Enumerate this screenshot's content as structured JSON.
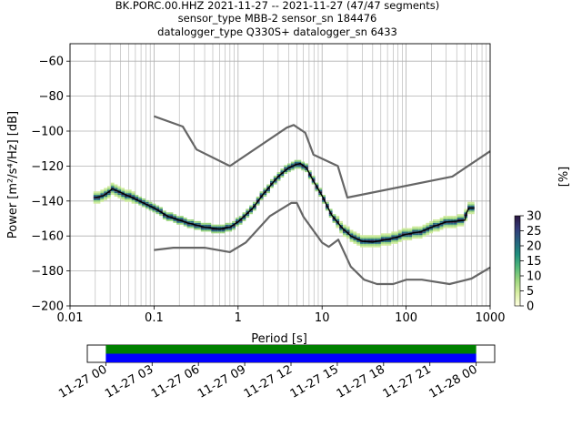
{
  "title_lines": [
    "BK.PORC.00.HHZ   2021-11-27 -- 2021-11-27  (47/47 segments)",
    "sensor_type MBB-2 sensor_sn 184476",
    "datalogger_type Q330S+ datalogger_sn 6433"
  ],
  "colors": {
    "bounds_line": "#666666",
    "mean_line": "#000000",
    "grid": "#b0b0b0",
    "coverage_green": "#008000",
    "coverage_blue": "#0000ff",
    "colormap": [
      "#ffffe0",
      "#d9efa4",
      "#9cd67e",
      "#52b87a",
      "#1f8f7e",
      "#27637f",
      "#333a78",
      "#2b1740"
    ]
  },
  "chart_data": [
    {
      "type": "heatmap",
      "xlabel": "Period [s]",
      "ylabel": "Power [m²/s⁴/Hz] [dB]",
      "xscale": "log",
      "xlim": [
        0.01,
        1000
      ],
      "ylim": [
        -200,
        -50
      ],
      "x_ticks": [
        0.01,
        0.1,
        1,
        10,
        100,
        1000
      ],
      "x_tick_labels": [
        "0.01",
        "0.1",
        "1",
        "10",
        "100",
        "1000"
      ],
      "y_ticks": [
        -200,
        -180,
        -160,
        -140,
        -120,
        -100,
        -80,
        -60
      ],
      "y_tick_labels": [
        "−200",
        "−180",
        "−160",
        "−140",
        "−120",
        "−100",
        "−80",
        "−60"
      ],
      "grid": true,
      "colorbar": {
        "label": "[%]",
        "range": [
          0,
          30
        ],
        "ticks": [
          0,
          5,
          10,
          15,
          20,
          25,
          30
        ]
      },
      "series": [
        {
          "name": "",
          "role": "high noise model",
          "x": [
            0.1,
            0.22,
            0.32,
            0.8,
            3.8,
            4.6,
            6.3,
            7.9,
            15.4,
            20,
            354.8,
            1000
          ],
          "y": [
            -91.5,
            -97.4,
            -110.5,
            -120,
            -98,
            -96.5,
            -101,
            -113.5,
            -120,
            -138,
            -126,
            -111.5
          ]
        },
        {
          "name": "",
          "role": "low noise model",
          "x": [
            0.1,
            0.17,
            0.4,
            0.8,
            1.24,
            2.4,
            4.3,
            5,
            6,
            10,
            12,
            15.6,
            21.9,
            31.6,
            45,
            70,
            101,
            154,
            328,
            600,
            1000
          ],
          "y": [
            -168,
            -166.7,
            -166.7,
            -169.2,
            -163.7,
            -148.6,
            -141.1,
            -141.1,
            -149,
            -163.8,
            -166.2,
            -162.1,
            -177.5,
            -185,
            -187.5,
            -187.5,
            -185,
            -185,
            -187.5,
            -184.4,
            -178
          ]
        },
        {
          "name": "",
          "role": "mean",
          "x": [
            0.02,
            0.025,
            0.032,
            0.04,
            0.06,
            0.1,
            0.15,
            0.25,
            0.4,
            0.6,
            0.8,
            1,
            1.5,
            2,
            3,
            4,
            5,
            5.5,
            6.5,
            8,
            10,
            13,
            17,
            22,
            30,
            40,
            60,
            80,
            100,
            150,
            200,
            300,
            400,
            500,
            520,
            560,
            600,
            650
          ],
          "y": [
            -138,
            -137,
            -133,
            -135,
            -139,
            -144,
            -149,
            -152.5,
            -155,
            -156,
            -155,
            -152,
            -144,
            -136,
            -126,
            -121,
            -119,
            -118.5,
            -121,
            -129,
            -137,
            -148,
            -155,
            -160,
            -163,
            -163.5,
            -162,
            -160.5,
            -159,
            -157.5,
            -155,
            -152,
            -151.5,
            -151,
            -147,
            -144,
            -144,
            -144
          ]
        }
      ]
    },
    {
      "type": "bar",
      "role": "data coverage",
      "x_tick_labels": [
        "11-27 00",
        "11-27 03",
        "11-27 06",
        "11-27 09",
        "11-27 12",
        "11-27 15",
        "11-27 18",
        "11-27 21",
        "11-28 00"
      ],
      "x_ticks_hours": [
        0,
        3,
        6,
        9,
        12,
        15,
        18,
        21,
        24
      ],
      "xlim_hours": [
        -1.2,
        25.2
      ],
      "segments": [
        {
          "name": "data",
          "start_hours": 0,
          "end_hours": 24,
          "color": "#008000"
        },
        {
          "name": "gaps",
          "start_hours": 0,
          "end_hours": 24,
          "color": "#0000ff"
        }
      ]
    }
  ]
}
